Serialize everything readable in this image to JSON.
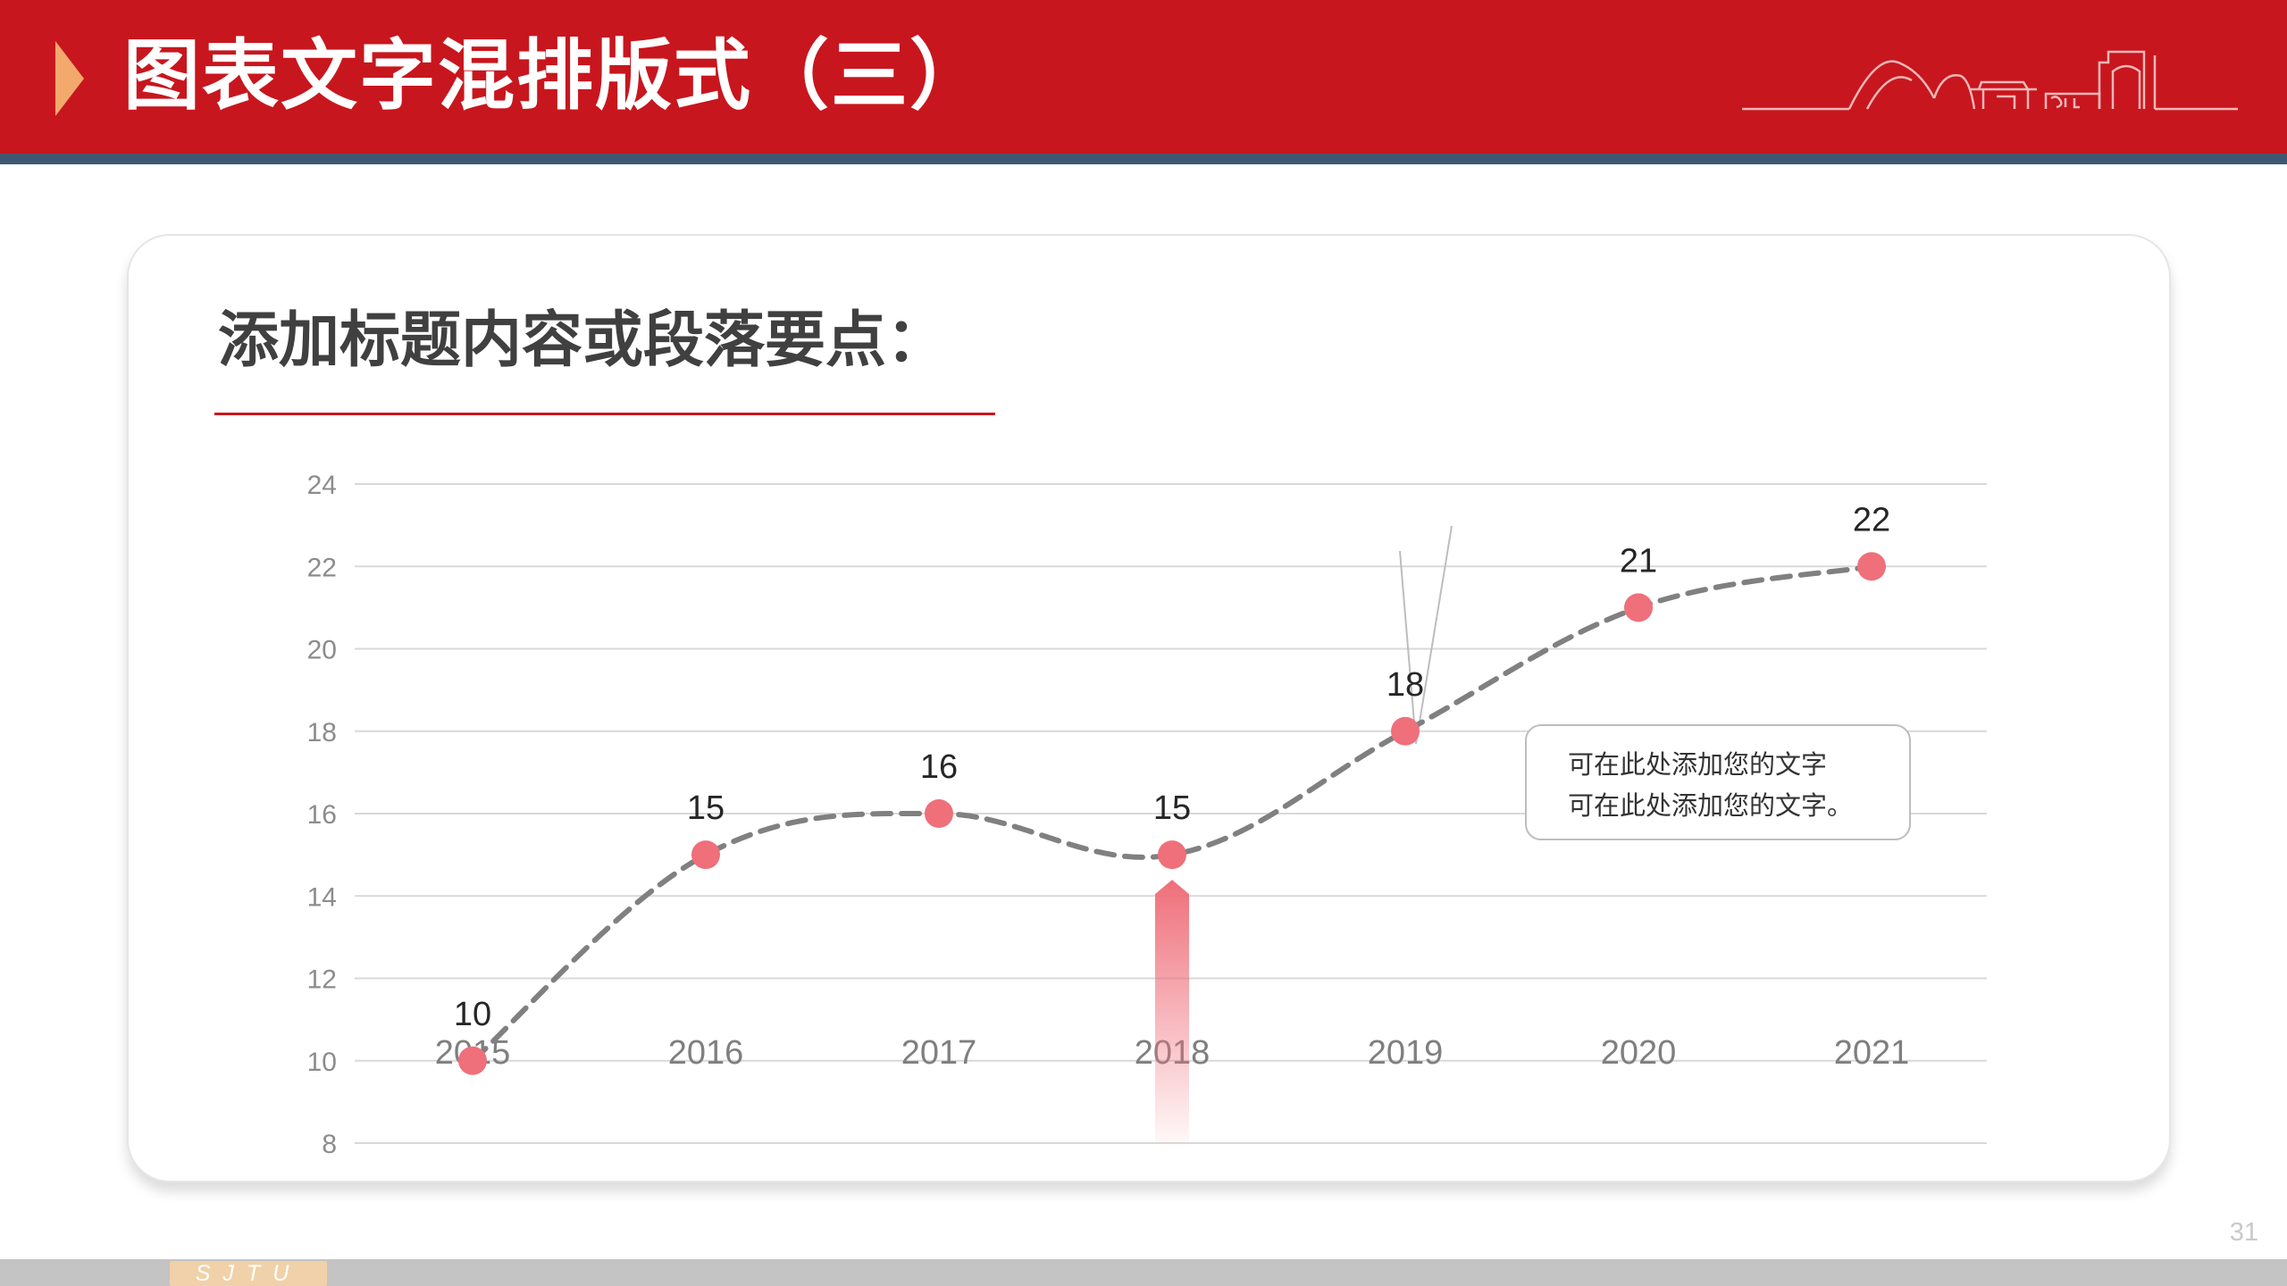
{
  "header": {
    "title": "图表文字混排版式（三）",
    "accent_color": "#c8161e",
    "strip_color": "#3f5773",
    "arrow_color": "#f3a96c",
    "skyline_icon": "campus-skyline-icon"
  },
  "card": {
    "heading": "添加标题内容或段落要点："
  },
  "callout": {
    "line1": "可在此处添加您的文字",
    "line2": "可在此处添加您的文字。"
  },
  "footer": {
    "page_number": "31",
    "logo_text": "SJTU"
  },
  "chart_data": {
    "type": "line",
    "categories": [
      "2015",
      "2016",
      "2017",
      "2018",
      "2019",
      "2020",
      "2021"
    ],
    "series": [
      {
        "values": [
          10,
          15,
          16,
          15,
          18,
          21,
          22
        ]
      }
    ],
    "data_labels": [
      "10",
      "15",
      "16",
      "15",
      "18",
      "21",
      "22"
    ],
    "y_ticks": [
      "24",
      "22",
      "20",
      "18",
      "16",
      "14",
      "12",
      "10",
      "8"
    ],
    "ylim": [
      8,
      24
    ],
    "y_step": 2,
    "grid": true,
    "line_style": "dashed-smooth",
    "line_color": "#808080",
    "point_color": "#ef6f7a",
    "highlight_category": "2018",
    "highlight_color": "#ef6f7a",
    "callout_category": "2019"
  }
}
